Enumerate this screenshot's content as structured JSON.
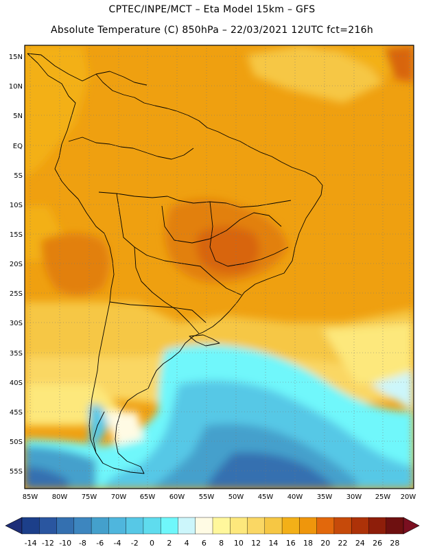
{
  "header": {
    "title_line1": "CPTEC/INPE/MCT –  Eta Model 15km – GFS",
    "title_line2": "Absolute Temperature (C) 850hPa – 22/03/2021 12UTC fct=216h"
  },
  "map": {
    "lat_labels": [
      "15N",
      "10N",
      "5N",
      "EQ",
      "5S",
      "10S",
      "15S",
      "20S",
      "25S",
      "30S",
      "35S",
      "40S",
      "45S",
      "50S",
      "55S"
    ],
    "lon_labels": [
      "85W",
      "80W",
      "75W",
      "70W",
      "65W",
      "60W",
      "55W",
      "50W",
      "45W",
      "40W",
      "35W",
      "30W",
      "25W",
      "20W"
    ]
  },
  "colorbar": {
    "labels": [
      "-14",
      "-12",
      "-10",
      "-8",
      "-6",
      "-4",
      "-2",
      "0",
      "2",
      "4",
      "6",
      "8",
      "10",
      "12",
      "14",
      "16",
      "18",
      "20",
      "22",
      "24",
      "26",
      "28"
    ],
    "colors": [
      "#1c3f8a",
      "#2a56a0",
      "#3470b0",
      "#3d86bf",
      "#44a0cc",
      "#4fb6dd",
      "#57c8e6",
      "#5fdcee",
      "#6ff7fb",
      "#ccf6fb",
      "#fffbe4",
      "#fff79c",
      "#fde87c",
      "#fad764",
      "#f6c744",
      "#f3b018",
      "#ef960c",
      "#e2680c",
      "#c64a0a",
      "#ad3208",
      "#8e1e0a",
      "#6e1010"
    ],
    "min_color": "#1e2e78",
    "max_color": "#7a0f20"
  }
}
